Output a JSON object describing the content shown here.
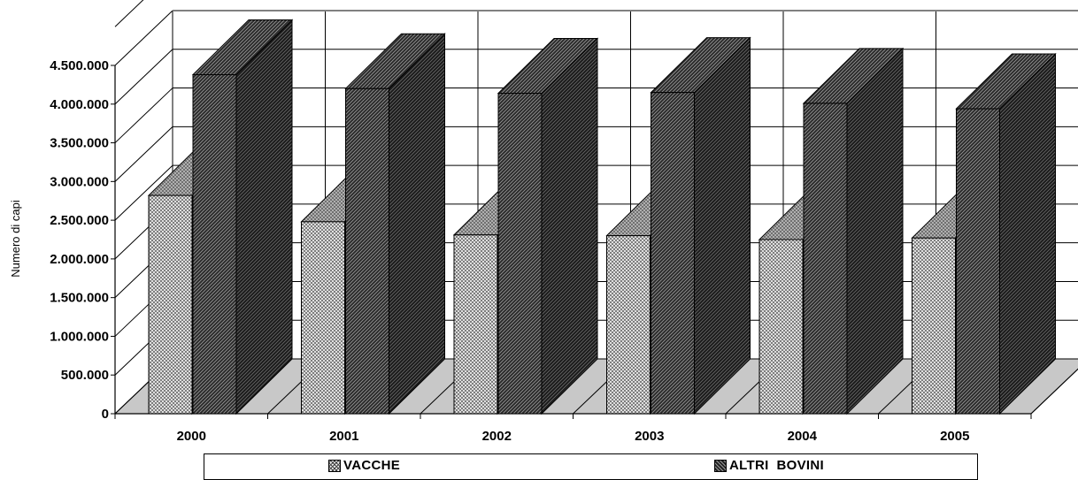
{
  "chart_data": {
    "type": "bar",
    "categories": [
      "2000",
      "2001",
      "2002",
      "2003",
      "2004",
      "2005"
    ],
    "series": [
      {
        "name": "VACCHE",
        "values": [
          2820000,
          2480000,
          2310000,
          2300000,
          2250000,
          2270000
        ]
      },
      {
        "name": "ALTRI  BOVINI",
        "values": [
          4380000,
          4200000,
          4140000,
          4150000,
          4010000,
          3940000
        ]
      }
    ],
    "title": "",
    "xlabel": "",
    "ylabel": "Numero di capi",
    "ylim": [
      0,
      4500000
    ],
    "yticks": [
      "0",
      "500.000",
      "1.000.000",
      "1.500.000",
      "2.000.000",
      "2.500.000",
      "3.000.000",
      "3.500.000",
      "4.000.000",
      "4.500.000"
    ],
    "grid": true,
    "legend": "bottom",
    "colors": {
      "VACCHE": "#e8e8e8",
      "ALTRI  BOVINI": "#333333",
      "floor": "#c8c8c8"
    }
  }
}
